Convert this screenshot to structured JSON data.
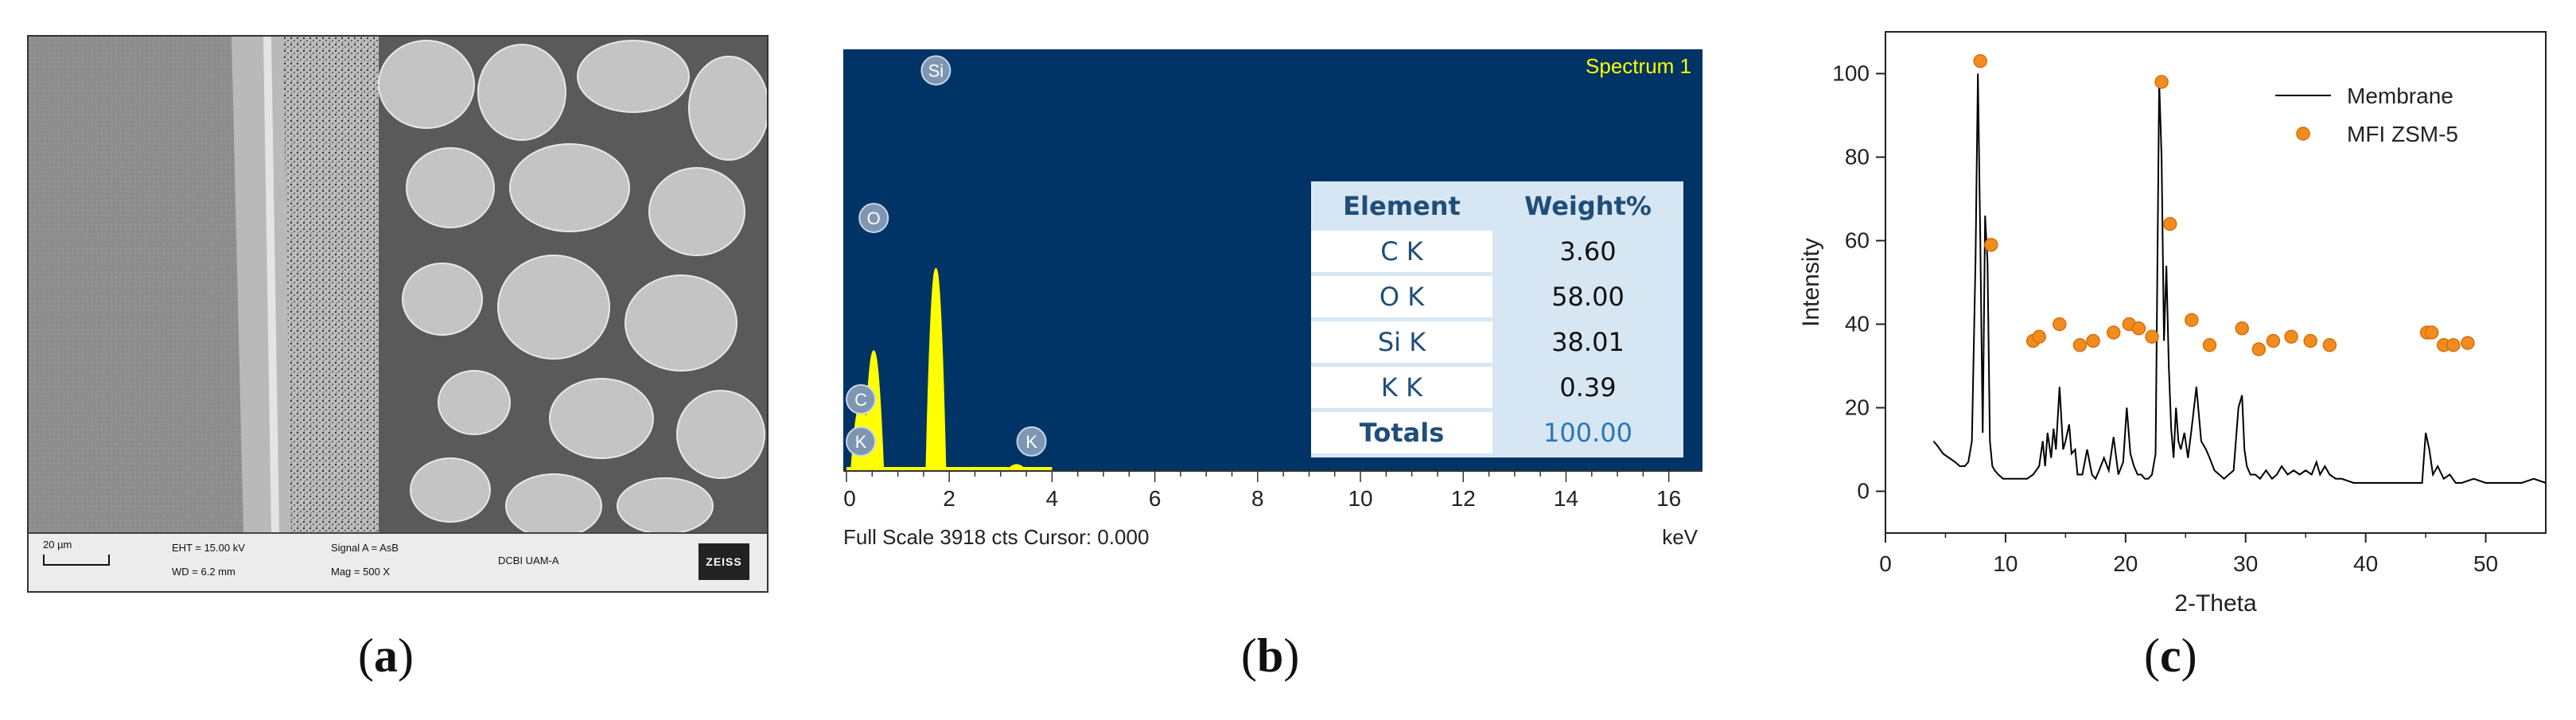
{
  "captions": {
    "a_open": "(",
    "a_letter": "a",
    "a_close": ")",
    "b_open": "(",
    "b_letter": "b",
    "b_close": ")",
    "c_open": "(",
    "c_letter": "c",
    "c_close": ")"
  },
  "sem": {
    "scale_label": "20 µm",
    "eht": "EHT = 15.00 kV",
    "wd": "WD =  6.2 mm",
    "signal": "Signal A = AsB",
    "mag": "Mag =    500 X",
    "institution": "DCBI UAM-A",
    "logo": "ZEISS"
  },
  "chart_data": [
    {
      "type": "table",
      "title": "Spectrum 1",
      "xlabel": "keV",
      "xlim": [
        0,
        16.5
      ],
      "xticks": [
        0,
        2,
        4,
        6,
        8,
        10,
        12,
        14,
        16
      ],
      "status": "Full Scale 3918 cts Cursor: 0.000",
      "background_color": "#003366",
      "spectrum_color": "#ffff00",
      "peaks": [
        {
          "label": "C",
          "x": 0.28,
          "height": 0.3
        },
        {
          "label": "O",
          "x": 0.53,
          "height": 0.55
        },
        {
          "label": "Si",
          "x": 1.74,
          "height": 0.94
        },
        {
          "label": "K",
          "x": 3.31,
          "height": 0.01
        }
      ],
      "element_labels": [
        {
          "label": "Si",
          "x": 1.74,
          "level": 0.95
        },
        {
          "label": "O",
          "x": 0.53,
          "level": 0.6
        },
        {
          "label": "C",
          "x": 0.28,
          "level": 0.17
        },
        {
          "label": "K",
          "x": 0.28,
          "level": 0.07
        },
        {
          "label": "K",
          "x": 3.6,
          "level": 0.07
        }
      ],
      "table": {
        "headers": [
          "Element",
          "Weight%"
        ],
        "rows": [
          [
            "C K",
            "3.60"
          ],
          [
            "O K",
            "58.00"
          ],
          [
            "Si K",
            "38.01"
          ],
          [
            "K K",
            "0.39"
          ]
        ],
        "total": [
          "Totals",
          "100.00"
        ]
      }
    },
    {
      "type": "line",
      "xlabel": "2-Theta",
      "ylabel": "Intensity",
      "xlim": [
        0,
        55
      ],
      "ylim": [
        -10,
        110
      ],
      "xticks": [
        0,
        10,
        20,
        30,
        40,
        50
      ],
      "yticks": [
        0,
        20,
        40,
        60,
        80,
        100
      ],
      "legend_position": "top-right",
      "series": [
        {
          "name": "Membrane",
          "kind": "line",
          "color": "#000000",
          "x": [
            4.0,
            4.3,
            4.8,
            5.3,
            5.8,
            6.2,
            6.6,
            6.9,
            7.2,
            7.5,
            7.7,
            7.9,
            8.1,
            8.3,
            8.5,
            8.7,
            8.9,
            9.1,
            9.4,
            9.8,
            10.3,
            10.8,
            11.3,
            11.8,
            12.3,
            12.8,
            13.1,
            13.3,
            13.5,
            13.8,
            14.0,
            14.2,
            14.5,
            14.8,
            15.0,
            15.3,
            15.5,
            15.8,
            16.0,
            16.4,
            16.8,
            17.2,
            17.5,
            17.8,
            18.2,
            18.6,
            19.0,
            19.4,
            19.8,
            20.1,
            20.4,
            20.7,
            21.0,
            21.3,
            21.6,
            21.9,
            22.2,
            22.5,
            22.8,
            23.0,
            23.2,
            23.4,
            23.6,
            23.8,
            24.0,
            24.2,
            24.4,
            24.6,
            24.9,
            25.2,
            25.5,
            25.9,
            26.3,
            26.7,
            27.0,
            27.4,
            27.8,
            28.2,
            28.6,
            29.0,
            29.4,
            29.7,
            29.9,
            30.1,
            30.4,
            30.8,
            31.2,
            31.7,
            32.2,
            32.6,
            33.0,
            33.5,
            34.0,
            34.5,
            35.0,
            35.5,
            35.9,
            36.2,
            36.6,
            37.0,
            37.5,
            38.0,
            39.0,
            40.0,
            41.0,
            42.0,
            43.0,
            44.0,
            44.7,
            45.0,
            45.3,
            45.6,
            46.0,
            46.5,
            47.0,
            47.5,
            48.0,
            49.0,
            50.0,
            51.0,
            52.0,
            53.0,
            54.0,
            55.0
          ],
          "y": [
            12,
            11,
            9,
            8,
            7,
            6,
            6,
            7,
            12,
            55,
            100,
            60,
            14,
            66,
            55,
            12,
            6,
            5,
            4,
            3,
            3,
            3,
            3,
            3,
            4,
            6,
            12,
            6,
            14,
            8,
            15,
            10,
            25,
            10,
            12,
            16,
            9,
            10,
            4,
            4,
            10,
            4,
            3,
            5,
            8,
            5,
            13,
            4,
            7,
            20,
            9,
            6,
            4,
            4,
            3,
            3,
            4,
            9,
            98,
            80,
            36,
            54,
            30,
            15,
            8,
            20,
            12,
            10,
            14,
            8,
            15,
            25,
            12,
            10,
            8,
            5,
            4,
            3,
            4,
            5,
            20,
            23,
            10,
            6,
            4,
            4,
            3,
            5,
            3,
            4,
            6,
            4,
            5,
            4,
            5,
            4,
            7,
            4,
            6,
            4,
            3,
            3,
            2,
            2,
            2,
            2,
            2,
            2,
            2,
            14,
            10,
            4,
            6,
            3,
            4,
            2,
            2,
            3,
            2,
            2,
            2,
            2,
            3,
            2
          ]
        },
        {
          "name": "MFI ZSM-5",
          "kind": "scatter",
          "color": "#f28c1e",
          "x": [
            7.9,
            8.8,
            12.3,
            12.8,
            14.5,
            16.2,
            17.3,
            19.0,
            20.3,
            21.1,
            22.2,
            23.0,
            23.7,
            25.5,
            27.0,
            29.7,
            31.1,
            32.3,
            33.8,
            35.4,
            37.0,
            45.1,
            45.5,
            46.5,
            47.3,
            48.5
          ],
          "y": [
            103,
            59,
            36,
            37,
            40,
            35,
            36,
            38,
            40,
            39,
            37,
            98,
            64,
            41,
            35,
            39,
            34,
            36,
            37,
            36,
            35,
            38,
            38,
            35,
            35,
            35.5
          ]
        }
      ]
    }
  ]
}
